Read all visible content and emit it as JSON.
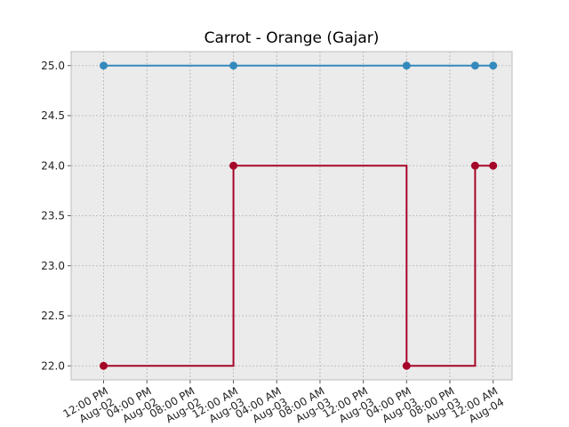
{
  "chart_data": {
    "type": "line",
    "title": "Carrot - Orange (Gajar)",
    "xlabel": "",
    "ylabel": "",
    "x_axis": "datetime",
    "xlim": [
      "2024-08-02T09:00:00",
      "2024-08-04T01:45:00"
    ],
    "ylim": [
      21.86,
      25.14
    ],
    "y_ticks": [
      "22.0",
      "22.5",
      "23.0",
      "23.5",
      "24.0",
      "24.5",
      "25.0"
    ],
    "x_ticks": [
      {
        "at": "2024-08-02T12:00:00",
        "line1": "12:00 PM",
        "line2": "Aug-02"
      },
      {
        "at": "2024-08-02T16:00:00",
        "line1": "04:00 PM",
        "line2": "Aug-02"
      },
      {
        "at": "2024-08-02T20:00:00",
        "line1": "08:00 PM",
        "line2": "Aug-02"
      },
      {
        "at": "2024-08-03T00:00:00",
        "line1": "12:00 AM",
        "line2": "Aug-03"
      },
      {
        "at": "2024-08-03T04:00:00",
        "line1": "04:00 AM",
        "line2": "Aug-03"
      },
      {
        "at": "2024-08-03T08:00:00",
        "line1": "08:00 AM",
        "line2": "Aug-03"
      },
      {
        "at": "2024-08-03T12:00:00",
        "line1": "12:00 PM",
        "line2": "Aug-03"
      },
      {
        "at": "2024-08-03T16:00:00",
        "line1": "04:00 PM",
        "line2": "Aug-03"
      },
      {
        "at": "2024-08-03T20:00:00",
        "line1": "08:00 PM",
        "line2": "Aug-03"
      },
      {
        "at": "2024-08-04T00:00:00",
        "line1": "12:00 AM",
        "line2": "Aug-04"
      }
    ],
    "grid": true,
    "series": [
      {
        "color": "#348abd",
        "step": "post",
        "points": [
          {
            "x": "2024-08-02T12:00:00",
            "y": 25.0
          },
          {
            "x": "2024-08-03T00:00:00",
            "y": 25.0
          },
          {
            "x": "2024-08-03T16:00:00",
            "y": 25.0
          },
          {
            "x": "2024-08-03T22:20:00",
            "y": 25.0
          },
          {
            "x": "2024-08-04T00:00:00",
            "y": 25.0
          }
        ]
      },
      {
        "color": "#a60628",
        "step": "post",
        "points": [
          {
            "x": "2024-08-02T12:00:00",
            "y": 22.0
          },
          {
            "x": "2024-08-03T00:00:00",
            "y": 24.0
          },
          {
            "x": "2024-08-03T16:00:00",
            "y": 22.0
          },
          {
            "x": "2024-08-03T22:20:00",
            "y": 24.0
          },
          {
            "x": "2024-08-04T00:00:00",
            "y": 24.0
          }
        ]
      }
    ]
  },
  "style": {
    "plot_bg": "#ebebeb",
    "grid_color": "#b2b2b2",
    "spine_color": "#bcbcbc"
  }
}
